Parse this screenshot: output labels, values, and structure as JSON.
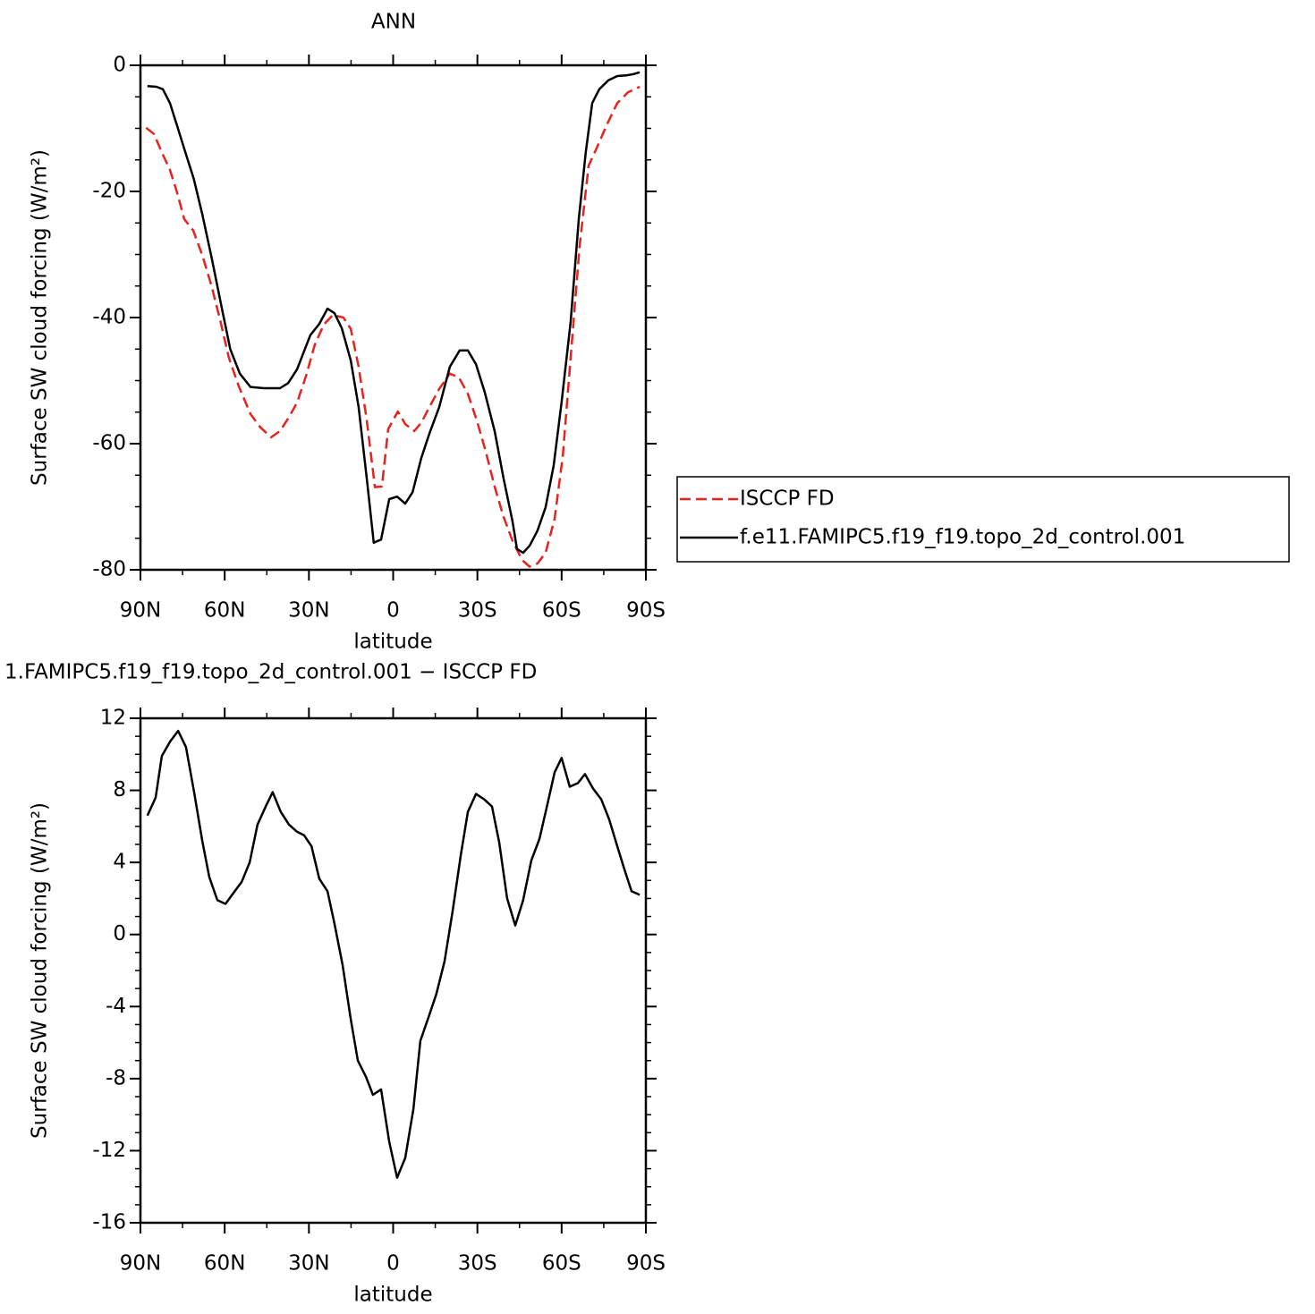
{
  "chart_data": [
    {
      "type": "line",
      "title": "ANN",
      "x_label": "latitude",
      "y_label": "Surface SW cloud forcing (W/m²)",
      "xlim": [
        90,
        -90
      ],
      "xticks": [
        {
          "value": 90,
          "label": "90N"
        },
        {
          "value": 60,
          "label": "60N"
        },
        {
          "value": 30,
          "label": "30N"
        },
        0,
        {
          "value": -30,
          "label": "30S"
        },
        {
          "value": -60,
          "label": "60S"
        },
        {
          "value": -90,
          "label": "90S"
        }
      ],
      "xminor": [
        75,
        45,
        15,
        -15,
        -45,
        -75
      ],
      "ylim": [
        -80,
        0
      ],
      "yticks": [
        0,
        -20,
        -40,
        -60,
        -80
      ],
      "yminor": [
        -5,
        -10,
        -15,
        -25,
        -30,
        -35,
        -45,
        -50,
        -55,
        -65,
        -70,
        -75
      ],
      "legend": "outside right",
      "series": [
        {
          "name": "ISCCP FD",
          "color": "#e8221c",
          "linestyle": "dashed",
          "x": [
            88,
            85.2,
            82.4,
            79.5,
            77,
            74.4,
            71.2,
            68,
            64.8,
            61.6,
            58.5,
            55,
            50.8,
            47.3,
            43.5,
            40.3,
            37.4,
            34.2,
            31,
            27.9,
            24.7,
            21.5,
            17.7,
            15.1,
            12.3,
            9.4,
            6.5,
            4,
            1.8,
            -1.7,
            -4.3,
            -7.5,
            -10,
            -12.9,
            -16.4,
            -20.2,
            -23.4,
            -26.6,
            -29.8,
            -33,
            -36.2,
            -39.3,
            -42.5,
            -46,
            -48.6,
            -51.4,
            -54.3,
            -57.5,
            -60.4,
            -63.2,
            -66.4,
            -69.6,
            -72.5,
            -76,
            -79.8,
            -83.6,
            -87.8
          ],
          "values": [
            -9.9,
            -10.9,
            -13.8,
            -16.6,
            -20.1,
            -24.4,
            -26.2,
            -30.1,
            -34.8,
            -40.4,
            -46.4,
            -50.9,
            -55.3,
            -57.4,
            -59,
            -58,
            -56,
            -53.5,
            -49.2,
            -44.3,
            -41.1,
            -39.6,
            -40,
            -41.8,
            -47.8,
            -56.3,
            -66.9,
            -66.8,
            -57.7,
            -54.9,
            -56.9,
            -58,
            -56.7,
            -54.2,
            -51.3,
            -48.9,
            -49.5,
            -52.1,
            -56.3,
            -61.3,
            -66.9,
            -71.6,
            -75.4,
            -78.5,
            -79.5,
            -79,
            -77.3,
            -71.9,
            -62,
            -46.4,
            -28.7,
            -15.9,
            -13.1,
            -9.5,
            -6,
            -4.3,
            -3.4
          ]
        },
        {
          "name": "f.e11.FAMIPC5.f19_f19.topo_2d_control.001",
          "color": "#000000",
          "linestyle": "solid",
          "x": [
            87.5,
            84.3,
            82,
            79.5,
            77,
            74,
            71,
            68,
            64.5,
            61.3,
            58,
            54.6,
            50.8,
            46,
            40.3,
            37.4,
            34.2,
            29.5,
            26.3,
            23.4,
            20.9,
            18.3,
            15.1,
            12.3,
            9.4,
            6.9,
            4.3,
            1.4,
            -1.4,
            -4.3,
            -6.9,
            -10,
            -12.9,
            -16.4,
            -20.2,
            -23.7,
            -26.6,
            -29.5,
            -32.6,
            -36.2,
            -39.3,
            -42.5,
            -44.1,
            -46.3,
            -48.6,
            -51.4,
            -54.3,
            -57.2,
            -60,
            -63.2,
            -66.1,
            -68.6,
            -70.9,
            -73.4,
            -76.6,
            -79.8,
            -83,
            -85.5,
            -87.8
          ],
          "values": [
            -3.3,
            -3.4,
            -3.8,
            -6,
            -9.5,
            -13.8,
            -18,
            -23.6,
            -30.8,
            -37.9,
            -45,
            -48.9,
            -51,
            -51.2,
            -51.2,
            -50.4,
            -48.2,
            -42.8,
            -41,
            -38.6,
            -39.3,
            -41.7,
            -46.8,
            -54.2,
            -65.5,
            -75.7,
            -75.2,
            -68.8,
            -68.4,
            -69.5,
            -67.7,
            -62.3,
            -58.4,
            -54.2,
            -47.8,
            -45.2,
            -45.2,
            -47.4,
            -51.8,
            -58.1,
            -65.5,
            -72.3,
            -76.7,
            -77.3,
            -76.2,
            -73.8,
            -70.1,
            -63.4,
            -53.4,
            -40.7,
            -24.4,
            -13.8,
            -6,
            -3.8,
            -2.4,
            -1.7,
            -1.6,
            -1.4,
            -1.1
          ]
        }
      ]
    },
    {
      "type": "line",
      "title": "1.FAMIPC5.f19_f19.topo_2d_control.001 − ISCCP FD",
      "x_label": "latitude",
      "y_label": "Surface SW cloud forcing (W/m²)",
      "xlim": [
        90,
        -90
      ],
      "xticks": [
        {
          "value": 90,
          "label": "90N"
        },
        {
          "value": 60,
          "label": "60N"
        },
        {
          "value": 30,
          "label": "30N"
        },
        0,
        {
          "value": -30,
          "label": "30S"
        },
        {
          "value": -60,
          "label": "60S"
        },
        {
          "value": -90,
          "label": "90S"
        }
      ],
      "xminor": [
        75,
        45,
        15,
        -15,
        -45,
        -75
      ],
      "ylim": [
        -16,
        12
      ],
      "yticks": [
        12,
        8,
        4,
        0,
        -4,
        -8,
        -12,
        -16
      ],
      "yminor": [
        11,
        10,
        9,
        7,
        6,
        5,
        3,
        2,
        1,
        -1,
        -2,
        -3,
        -5,
        -6,
        -7,
        -9,
        -10,
        -11,
        -13,
        -14,
        -15
      ],
      "color": "#000000",
      "linestyle": "solid",
      "x": [
        87.5,
        84.6,
        82.4,
        79.5,
        76.6,
        73.8,
        70.9,
        68,
        65.5,
        62.6,
        59.7,
        56.9,
        54,
        51.1,
        48.3,
        45.4,
        42.9,
        40,
        37.1,
        34.2,
        31.7,
        29.1,
        26.3,
        23.4,
        20.9,
        18,
        15.1,
        12.6,
        9.7,
        7.2,
        4.3,
        1.4,
        -1.4,
        -4.3,
        -7.2,
        -9.7,
        -12.6,
        -15.4,
        -18.3,
        -21.2,
        -24.1,
        -26.6,
        -29.5,
        -32.4,
        -35.2,
        -37.8,
        -40.6,
        -43.5,
        -46.3,
        -49.2,
        -52.1,
        -54.6,
        -57.5,
        -60,
        -62.9,
        -65.8,
        -68.3,
        -71.2,
        -74.1,
        -76.9,
        -79.8,
        -82.4,
        -84.9,
        -87.8
      ],
      "values": [
        6.6,
        7.6,
        9.9,
        10.7,
        11.3,
        10.4,
        7.9,
        5.2,
        3.2,
        1.9,
        1.7,
        2.3,
        2.9,
        4,
        6.1,
        7.1,
        7.9,
        6.8,
        6.1,
        5.7,
        5.5,
        4.9,
        3.1,
        2.4,
        0.6,
        -1.7,
        -4.7,
        -7,
        -7.9,
        -8.9,
        -8.6,
        -11.5,
        -13.5,
        -12.4,
        -9.7,
        -5.9,
        -4.6,
        -3.3,
        -1.5,
        1.3,
        4.4,
        6.8,
        7.8,
        7.5,
        7.1,
        5.1,
        2,
        0.5,
        1.9,
        4.1,
        5.3,
        7,
        9,
        9.8,
        8.2,
        8.4,
        8.9,
        8.1,
        7.5,
        6.4,
        4.9,
        3.6,
        2.4,
        2.2
      ]
    }
  ]
}
